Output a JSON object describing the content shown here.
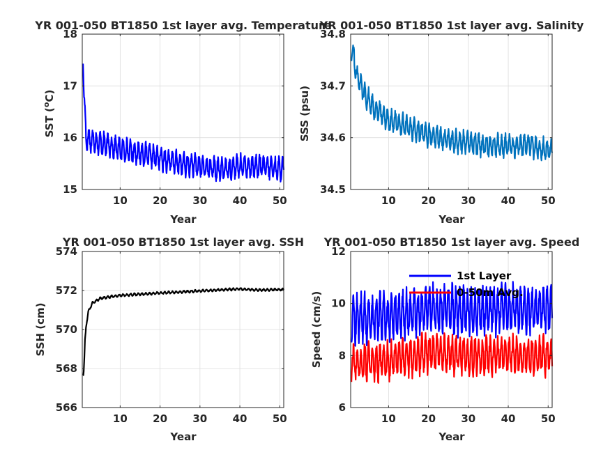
{
  "chart_data": [
    {
      "type": "line",
      "id": "sst",
      "title": "YR 001-050 BT1850 1st layer avg. Temperature",
      "xlabel": "Year",
      "ylabel": "SST (°C)",
      "ylabel_base": "SST (",
      "ylabel_sup": "o",
      "ylabel_tail": "C)",
      "xlim": [
        0.5,
        51
      ],
      "ylim": [
        15,
        18
      ],
      "xticks": [
        10,
        20,
        30,
        40,
        50
      ],
      "yticks": [
        15,
        16,
        17,
        18
      ],
      "ytick_labels": [
        "15",
        "16",
        "17",
        "18"
      ],
      "grid": true,
      "series": [
        {
          "color": "#0000ff",
          "start": 17.65,
          "init_end": 16.05,
          "init_tau": 0.35,
          "base": [
            [
              1,
              16.0
            ],
            [
              5,
              15.9
            ],
            [
              10,
              15.78
            ],
            [
              15,
              15.7
            ],
            [
              20,
              15.6
            ],
            [
              25,
              15.5
            ],
            [
              30,
              15.45
            ],
            [
              35,
              15.38
            ],
            [
              40,
              15.45
            ],
            [
              45,
              15.45
            ],
            [
              50,
              15.4
            ],
            [
              51,
              15.4
            ]
          ],
          "amp": 0.18
        }
      ]
    },
    {
      "type": "line",
      "id": "sss",
      "title": "YR 001-050 BT1850 1st layer avg. Salinity",
      "xlabel": "Year",
      "ylabel": "SSS (psu)",
      "xlim": [
        0.5,
        51
      ],
      "ylim": [
        34.5,
        34.8
      ],
      "xticks": [
        10,
        20,
        30,
        40,
        50
      ],
      "yticks": [
        34.5,
        34.6,
        34.7,
        34.8
      ],
      "ytick_labels": [
        "34.5",
        "34.6",
        "34.7",
        "34.8"
      ],
      "grid": true,
      "series": [
        {
          "color": "#0072bd",
          "start": 34.77,
          "init_end": 34.73,
          "init_tau": 0.6,
          "base": [
            [
              1,
              34.76
            ],
            [
              2,
              34.72
            ],
            [
              4,
              34.685
            ],
            [
              6,
              34.66
            ],
            [
              10,
              34.635
            ],
            [
              15,
              34.62
            ],
            [
              20,
              34.605
            ],
            [
              25,
              34.595
            ],
            [
              30,
              34.59
            ],
            [
              35,
              34.585
            ],
            [
              40,
              34.585
            ],
            [
              45,
              34.585
            ],
            [
              50,
              34.575
            ],
            [
              51,
              34.575
            ]
          ],
          "amp": 0.018
        }
      ]
    },
    {
      "type": "line",
      "id": "ssh",
      "title": "YR 001-050 BT1850 1st layer avg. SSH",
      "xlabel": "Year",
      "ylabel": "SSH (cm)",
      "xlim": [
        0.5,
        51
      ],
      "ylim": [
        566,
        574
      ],
      "xticks": [
        10,
        20,
        30,
        40,
        50
      ],
      "yticks": [
        566,
        568,
        570,
        572,
        574
      ],
      "ytick_labels": [
        "566",
        "568",
        "570",
        "572",
        "574"
      ],
      "grid": true,
      "series": [
        {
          "color": "#000000",
          "start": 567.7,
          "init_end": 569.5,
          "init_tau": 0.25,
          "base": [
            [
              0.8,
              567.7
            ],
            [
              1.2,
              569.8
            ],
            [
              2,
              570.9
            ],
            [
              3,
              571.35
            ],
            [
              5,
              571.6
            ],
            [
              10,
              571.75
            ],
            [
              20,
              571.87
            ],
            [
              30,
              571.98
            ],
            [
              40,
              572.08
            ],
            [
              45,
              572.02
            ],
            [
              50,
              572.05
            ],
            [
              51,
              572.05
            ]
          ],
          "amp": 0.05
        }
      ]
    },
    {
      "type": "line",
      "id": "speed",
      "title": "YR 001-050 BT1850 1st layer avg. Speed",
      "xlabel": "Year",
      "ylabel": "Speed (cm/s)",
      "xlim": [
        0.5,
        51
      ],
      "ylim": [
        6,
        12
      ],
      "xticks": [
        10,
        20,
        30,
        40,
        50
      ],
      "yticks": [
        6,
        8,
        10,
        12
      ],
      "ytick_labels": [
        "6",
        "8",
        "10",
        "12"
      ],
      "grid": true,
      "legend": "top-right",
      "series": [
        {
          "name": "1st Layer",
          "color": "#0000ff",
          "base": [
            [
              1,
              9.4
            ],
            [
              10,
              9.5
            ],
            [
              20,
              9.8
            ],
            [
              30,
              9.7
            ],
            [
              40,
              9.8
            ],
            [
              50,
              9.8
            ],
            [
              51,
              9.8
            ]
          ],
          "amp": 0.75
        },
        {
          "name": "0-50m Avg.",
          "color": "#ff0000",
          "base": [
            [
              1,
              7.7
            ],
            [
              10,
              7.8
            ],
            [
              20,
              8.1
            ],
            [
              30,
              8.0
            ],
            [
              40,
              8.0
            ],
            [
              50,
              8.0
            ],
            [
              51,
              8.0
            ]
          ],
          "amp": 0.6
        }
      ]
    }
  ]
}
